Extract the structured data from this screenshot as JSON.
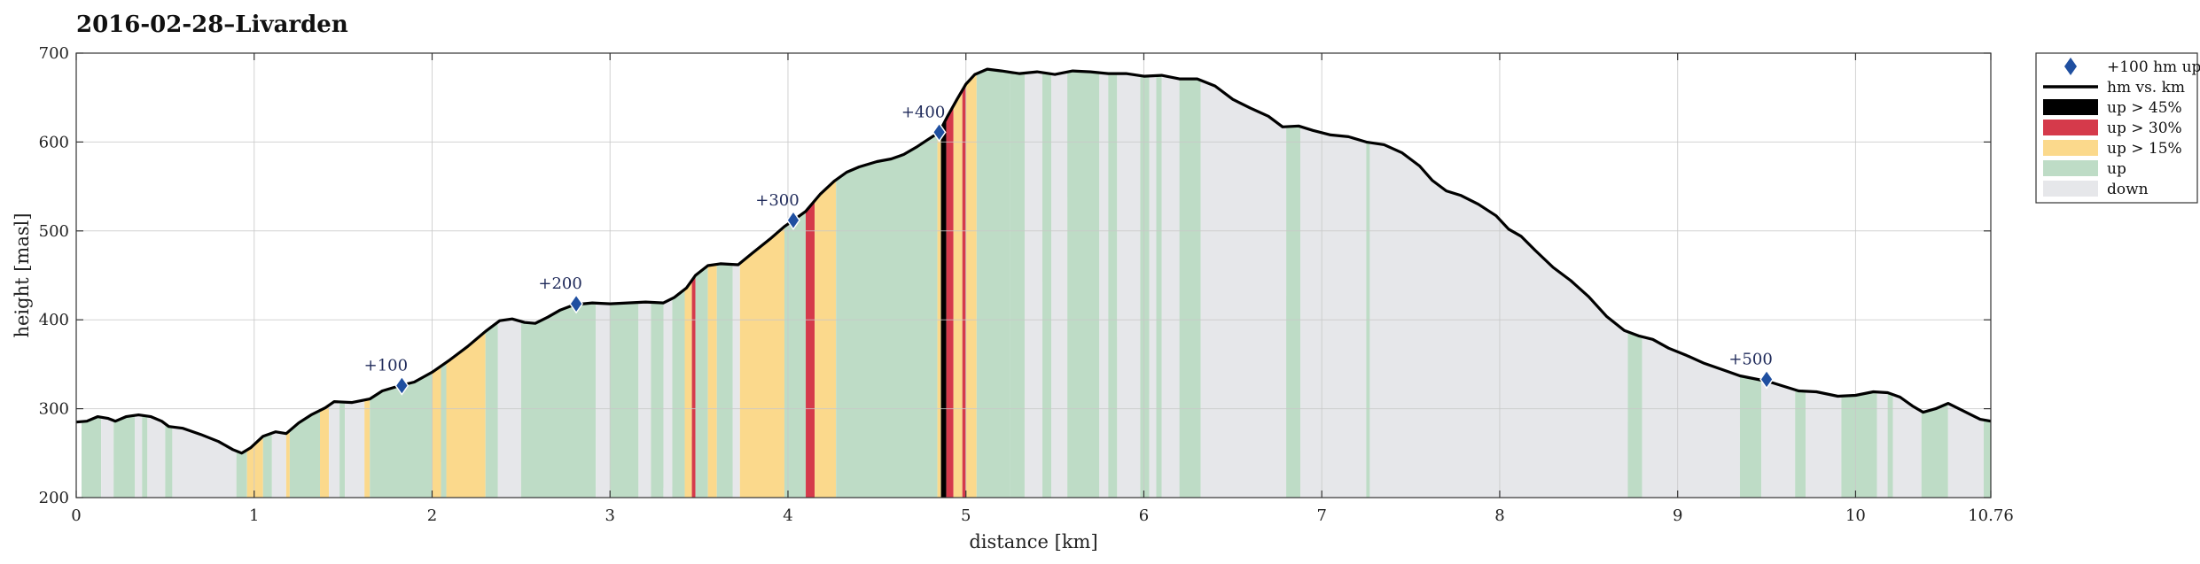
{
  "chart_data": {
    "type": "area",
    "title": "2016-02-28–Livarden",
    "xlabel": "distance [km]",
    "ylabel": "height [masl]",
    "xlim": [
      0,
      10.76
    ],
    "ylim": [
      200,
      700
    ],
    "xticks": [
      "0",
      "1",
      "2",
      "3",
      "4",
      "5",
      "6",
      "7",
      "8",
      "9",
      "10",
      "10.76"
    ],
    "yticks": [
      "200",
      "300",
      "400",
      "500",
      "600",
      "700"
    ],
    "grid": true,
    "legend_position": "outside-top-right",
    "colors": {
      "up45": "#000000",
      "up30": "#d53a4b",
      "up15": "#fbd98c",
      "up": "#bedcc6",
      "down": "#e6e7ea",
      "line": "#000000",
      "marker": "#1f4fa0"
    },
    "legend": [
      {
        "key": "marker",
        "label": "+100 hm up"
      },
      {
        "key": "line",
        "label": "hm vs. km"
      },
      {
        "key": "up45",
        "label": "up > 45%"
      },
      {
        "key": "up30",
        "label": "up > 30%"
      },
      {
        "key": "up15",
        "label": "up > 15%"
      },
      {
        "key": "up",
        "label": "up"
      },
      {
        "key": "down",
        "label": "down"
      }
    ],
    "profile": [
      [
        0.0,
        285
      ],
      [
        0.06,
        286
      ],
      [
        0.12,
        291
      ],
      [
        0.18,
        289
      ],
      [
        0.22,
        286
      ],
      [
        0.28,
        291
      ],
      [
        0.35,
        293
      ],
      [
        0.42,
        291
      ],
      [
        0.48,
        286
      ],
      [
        0.52,
        280
      ],
      [
        0.6,
        278
      ],
      [
        0.7,
        271
      ],
      [
        0.8,
        263
      ],
      [
        0.88,
        254
      ],
      [
        0.93,
        250
      ],
      [
        0.98,
        256
      ],
      [
        1.05,
        269
      ],
      [
        1.12,
        274
      ],
      [
        1.18,
        272
      ],
      [
        1.25,
        284
      ],
      [
        1.32,
        293
      ],
      [
        1.4,
        301
      ],
      [
        1.45,
        308
      ],
      [
        1.55,
        307
      ],
      [
        1.65,
        311
      ],
      [
        1.72,
        320
      ],
      [
        1.82,
        326
      ],
      [
        1.9,
        330
      ],
      [
        2.0,
        341
      ],
      [
        2.1,
        355
      ],
      [
        2.2,
        370
      ],
      [
        2.3,
        387
      ],
      [
        2.38,
        399
      ],
      [
        2.45,
        401
      ],
      [
        2.52,
        397
      ],
      [
        2.58,
        396
      ],
      [
        2.65,
        403
      ],
      [
        2.72,
        411
      ],
      [
        2.8,
        417
      ],
      [
        2.9,
        419
      ],
      [
        3.0,
        418
      ],
      [
        3.1,
        419
      ],
      [
        3.2,
        420
      ],
      [
        3.3,
        419
      ],
      [
        3.36,
        425
      ],
      [
        3.43,
        436
      ],
      [
        3.48,
        450
      ],
      [
        3.55,
        461
      ],
      [
        3.62,
        463
      ],
      [
        3.72,
        462
      ],
      [
        3.8,
        475
      ],
      [
        3.9,
        491
      ],
      [
        3.98,
        505
      ],
      [
        4.03,
        512
      ],
      [
        4.1,
        522
      ],
      [
        4.18,
        541
      ],
      [
        4.26,
        556
      ],
      [
        4.33,
        566
      ],
      [
        4.4,
        572
      ],
      [
        4.5,
        578
      ],
      [
        4.58,
        581
      ],
      [
        4.65,
        586
      ],
      [
        4.72,
        594
      ],
      [
        4.78,
        602
      ],
      [
        4.85,
        611
      ],
      [
        4.9,
        630
      ],
      [
        4.95,
        648
      ],
      [
        5.0,
        665
      ],
      [
        5.05,
        676
      ],
      [
        5.12,
        682
      ],
      [
        5.2,
        680
      ],
      [
        5.3,
        677
      ],
      [
        5.4,
        679
      ],
      [
        5.5,
        676
      ],
      [
        5.6,
        680
      ],
      [
        5.7,
        679
      ],
      [
        5.8,
        677
      ],
      [
        5.9,
        677
      ],
      [
        6.0,
        674
      ],
      [
        6.1,
        675
      ],
      [
        6.2,
        671
      ],
      [
        6.3,
        671
      ],
      [
        6.4,
        663
      ],
      [
        6.5,
        648
      ],
      [
        6.6,
        638
      ],
      [
        6.7,
        629
      ],
      [
        6.78,
        617
      ],
      [
        6.87,
        618
      ],
      [
        6.95,
        613
      ],
      [
        7.05,
        608
      ],
      [
        7.15,
        606
      ],
      [
        7.25,
        600
      ],
      [
        7.35,
        597
      ],
      [
        7.45,
        588
      ],
      [
        7.55,
        573
      ],
      [
        7.62,
        557
      ],
      [
        7.7,
        545
      ],
      [
        7.78,
        540
      ],
      [
        7.88,
        530
      ],
      [
        7.98,
        517
      ],
      [
        8.05,
        502
      ],
      [
        8.12,
        494
      ],
      [
        8.2,
        478
      ],
      [
        8.3,
        459
      ],
      [
        8.4,
        444
      ],
      [
        8.5,
        426
      ],
      [
        8.6,
        404
      ],
      [
        8.7,
        388
      ],
      [
        8.78,
        382
      ],
      [
        8.86,
        378
      ],
      [
        8.95,
        368
      ],
      [
        9.05,
        360
      ],
      [
        9.15,
        351
      ],
      [
        9.25,
        344
      ],
      [
        9.35,
        337
      ],
      [
        9.45,
        333
      ],
      [
        9.52,
        330
      ],
      [
        9.6,
        325
      ],
      [
        9.68,
        320
      ],
      [
        9.78,
        319
      ],
      [
        9.9,
        314
      ],
      [
        10.0,
        315
      ],
      [
        10.1,
        319
      ],
      [
        10.18,
        318
      ],
      [
        10.25,
        313
      ],
      [
        10.32,
        303
      ],
      [
        10.38,
        296
      ],
      [
        10.45,
        300
      ],
      [
        10.52,
        306
      ],
      [
        10.58,
        300
      ],
      [
        10.65,
        293
      ],
      [
        10.7,
        288
      ],
      [
        10.76,
        286
      ]
    ],
    "segments": [
      [
        0.03,
        0.14,
        "up"
      ],
      [
        0.14,
        0.21,
        "down"
      ],
      [
        0.21,
        0.33,
        "up"
      ],
      [
        0.33,
        0.37,
        "down"
      ],
      [
        0.37,
        0.4,
        "up"
      ],
      [
        0.4,
        0.5,
        "down"
      ],
      [
        0.5,
        0.54,
        "up"
      ],
      [
        0.54,
        0.9,
        "down"
      ],
      [
        0.9,
        0.96,
        "up"
      ],
      [
        0.96,
        1.05,
        "up15"
      ],
      [
        1.05,
        1.1,
        "up"
      ],
      [
        1.1,
        1.18,
        "down"
      ],
      [
        1.18,
        1.2,
        "up15"
      ],
      [
        1.2,
        1.37,
        "up"
      ],
      [
        1.37,
        1.42,
        "up15"
      ],
      [
        1.42,
        1.48,
        "down"
      ],
      [
        1.48,
        1.51,
        "up"
      ],
      [
        1.51,
        1.62,
        "down"
      ],
      [
        1.62,
        1.65,
        "up15"
      ],
      [
        1.65,
        2.0,
        "up"
      ],
      [
        2.0,
        2.05,
        "up15"
      ],
      [
        2.05,
        2.08,
        "up"
      ],
      [
        2.08,
        2.3,
        "up15"
      ],
      [
        2.3,
        2.37,
        "up"
      ],
      [
        2.37,
        2.5,
        "down"
      ],
      [
        2.5,
        2.92,
        "up"
      ],
      [
        2.92,
        3.0,
        "down"
      ],
      [
        3.0,
        3.16,
        "up"
      ],
      [
        3.16,
        3.23,
        "down"
      ],
      [
        3.23,
        3.3,
        "up"
      ],
      [
        3.3,
        3.35,
        "down"
      ],
      [
        3.35,
        3.42,
        "up"
      ],
      [
        3.42,
        3.46,
        "up15"
      ],
      [
        3.46,
        3.48,
        "up30"
      ],
      [
        3.48,
        3.55,
        "up"
      ],
      [
        3.55,
        3.6,
        "up15"
      ],
      [
        3.6,
        3.69,
        "up"
      ],
      [
        3.69,
        3.73,
        "down"
      ],
      [
        3.73,
        3.98,
        "up15"
      ],
      [
        3.98,
        4.1,
        "up"
      ],
      [
        4.1,
        4.15,
        "up30"
      ],
      [
        4.15,
        4.27,
        "up15"
      ],
      [
        4.27,
        4.84,
        "up"
      ],
      [
        4.84,
        4.86,
        "up15"
      ],
      [
        4.86,
        4.89,
        "up45"
      ],
      [
        4.89,
        4.93,
        "up30"
      ],
      [
        4.93,
        4.98,
        "up15"
      ],
      [
        4.98,
        5.0,
        "up30"
      ],
      [
        5.0,
        5.06,
        "up15"
      ],
      [
        5.06,
        5.25,
        "up"
      ],
      [
        5.25,
        5.33,
        "up"
      ],
      [
        5.33,
        5.43,
        "down"
      ],
      [
        5.43,
        5.48,
        "up"
      ],
      [
        5.48,
        5.57,
        "down"
      ],
      [
        5.57,
        5.75,
        "up"
      ],
      [
        5.75,
        5.8,
        "down"
      ],
      [
        5.8,
        5.85,
        "up"
      ],
      [
        5.85,
        5.98,
        "down"
      ],
      [
        5.98,
        6.03,
        "up"
      ],
      [
        6.03,
        6.07,
        "down"
      ],
      [
        6.07,
        6.1,
        "up"
      ],
      [
        6.1,
        6.2,
        "down"
      ],
      [
        6.2,
        6.32,
        "up"
      ],
      [
        6.32,
        6.8,
        "down"
      ],
      [
        6.8,
        6.88,
        "up"
      ],
      [
        6.88,
        7.25,
        "down"
      ],
      [
        7.25,
        7.27,
        "up"
      ],
      [
        7.27,
        8.72,
        "down"
      ],
      [
        8.72,
        8.8,
        "up"
      ],
      [
        8.8,
        9.35,
        "down"
      ],
      [
        9.35,
        9.47,
        "up"
      ],
      [
        9.47,
        9.66,
        "down"
      ],
      [
        9.66,
        9.72,
        "up"
      ],
      [
        9.72,
        9.92,
        "down"
      ],
      [
        9.92,
        10.12,
        "up"
      ],
      [
        10.12,
        10.18,
        "down"
      ],
      [
        10.18,
        10.21,
        "up"
      ],
      [
        10.21,
        10.37,
        "down"
      ],
      [
        10.37,
        10.52,
        "up"
      ],
      [
        10.52,
        10.72,
        "down"
      ],
      [
        10.72,
        10.76,
        "up"
      ]
    ],
    "markers": [
      {
        "x": 1.83,
        "y": 326,
        "label": "+100"
      },
      {
        "x": 2.81,
        "y": 418,
        "label": "+200"
      },
      {
        "x": 4.03,
        "y": 512,
        "label": "+300"
      },
      {
        "x": 4.85,
        "y": 611,
        "label": "+400"
      },
      {
        "x": 9.5,
        "y": 333,
        "label": "+500"
      }
    ]
  }
}
